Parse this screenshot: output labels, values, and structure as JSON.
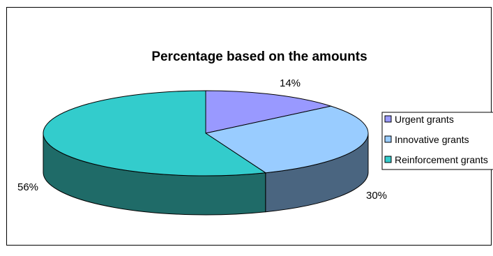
{
  "chart_data": {
    "type": "pie",
    "title": "Percentage based on the amounts",
    "categories": [
      "Urgent grants",
      "Innovative grants",
      "Reinforcement grants"
    ],
    "values": [
      14,
      30,
      56
    ],
    "labels": [
      "14%",
      "30%",
      "56%"
    ],
    "colors": [
      "#9999ff",
      "#99ccff",
      "#33cccc"
    ],
    "side_colors": [
      "#5c5c99",
      "#4a6580",
      "#1f6b68"
    ],
    "legend_position": "right",
    "three_d": true
  }
}
